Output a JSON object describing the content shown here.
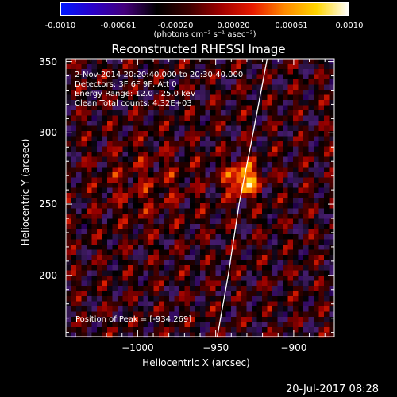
{
  "colorbar": {
    "ticks": [
      "-0.0010",
      "-0.00061",
      "-0.00020",
      "0.00020",
      "0.00061",
      "0.0010"
    ],
    "units": "(photons cm⁻² s⁻¹ asec⁻²)",
    "colors": [
      "#0018ff",
      "#2a00c8",
      "#43007a",
      "#000000",
      "#3c0000",
      "#a00000",
      "#e81a00",
      "#ff8a00",
      "#ffd500",
      "#ffffff"
    ]
  },
  "chart_data": {
    "type": "heatmap",
    "title": "Reconstructed RHESSI Image",
    "xlabel": "Heliocentric X (arcsec)",
    "ylabel": "Heliocentric Y (arcsec)",
    "xlim": [
      -1046,
      -874
    ],
    "ylim": [
      157,
      352
    ],
    "xticks": [
      -1000,
      -950,
      -900
    ],
    "xtick_labels": [
      "−1000",
      "−950",
      "−900"
    ],
    "yticks": [
      200,
      250,
      300,
      350
    ],
    "ytick_labels": [
      "200",
      "250",
      "300",
      "350"
    ],
    "grid": false,
    "annotations": [
      "2-Nov-2014 20:20:40.000 to 20:30:40.000",
      "Detectors: 3F 6F 9F, Att 0",
      "Energy Range: 12.0 - 25.0 keV",
      "Clean    Total counts: 4.32E+03"
    ],
    "peak_label": "Position of Peak = [-934,269]",
    "peak": [
      -934,
      269
    ],
    "limb_curve": [
      [
        -949,
        157
      ],
      [
        -942,
        200
      ],
      [
        -935,
        250
      ],
      [
        -926,
        300
      ],
      [
        -917,
        352
      ]
    ]
  },
  "footer": {
    "date": "20-Jul-2017 08:28"
  }
}
